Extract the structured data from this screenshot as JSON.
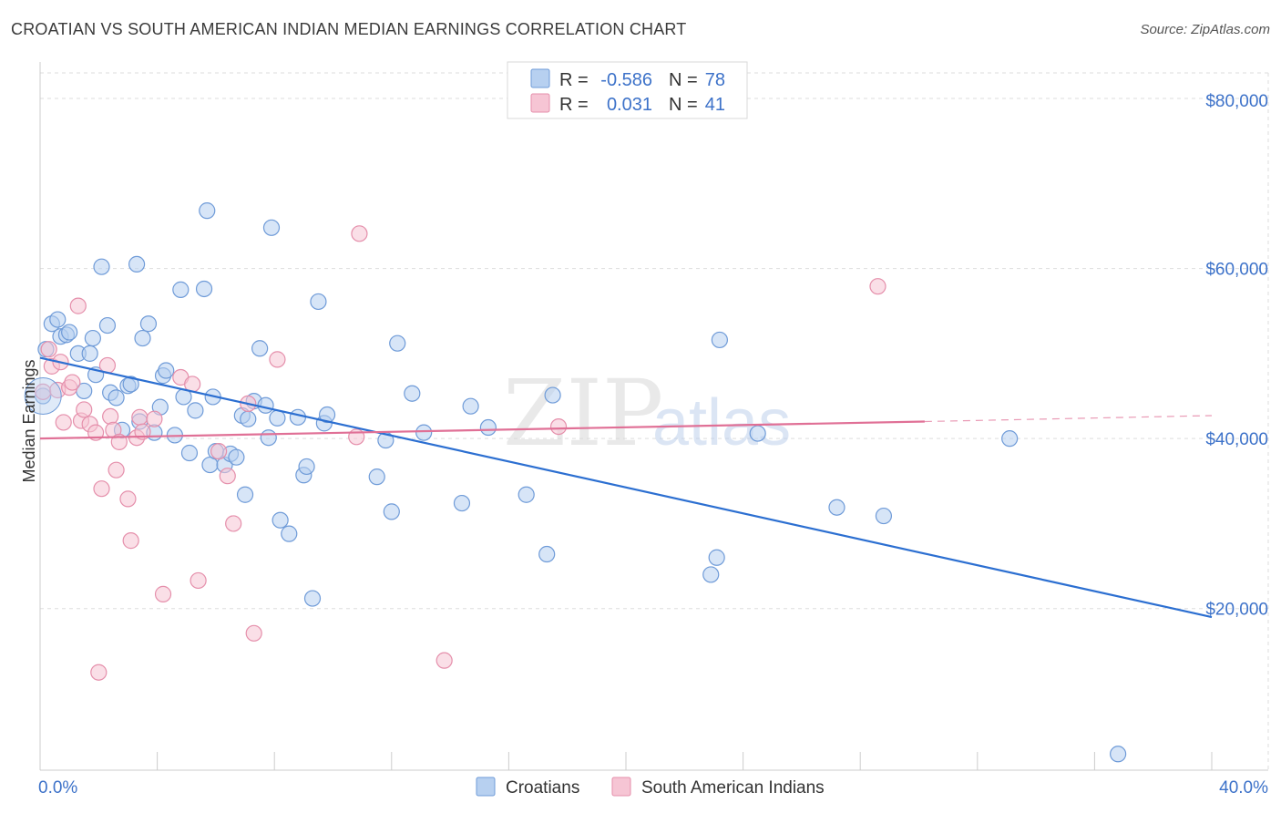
{
  "title": "CROATIAN VS SOUTH AMERICAN INDIAN MEDIAN EARNINGS CORRELATION CHART",
  "source": "Source: ZipAtlas.com",
  "watermark": {
    "zip": "ZIP",
    "atlas": "atlas"
  },
  "colors": {
    "blue_fill": "#b7d0f0",
    "blue_stroke": "#6f9bd8",
    "blue_line": "#2c6fd1",
    "pink_fill": "#f6c5d4",
    "pink_stroke": "#e58fab",
    "pink_line": "#e07096",
    "axis_text": "#3d72c9",
    "grid": "#dddddd"
  },
  "legend": {
    "rows": [
      {
        "r_label": "R =",
        "r_value": "-0.586",
        "n_label": "N =",
        "n_value": "78"
      },
      {
        "r_label": "R =",
        "r_value": "0.031",
        "n_label": "N =",
        "n_value": "41"
      }
    ]
  },
  "bottom_legend": [
    "Croatians",
    "South American Indians"
  ],
  "chart_data": {
    "type": "scatter",
    "ylabel": "Median Earnings",
    "x_tick_labels": [
      "0.0%",
      "40.0%"
    ],
    "y_tick_labels": [
      "$20,000",
      "$40,000",
      "$60,000",
      "$80,000"
    ],
    "xlim": [
      0,
      40
    ],
    "ylim": [
      1000,
      83000
    ],
    "y_ticks": [
      20000,
      40000,
      60000,
      80000
    ],
    "x_minor_ticks": [
      0,
      4,
      8,
      12,
      16,
      20,
      24,
      28,
      32,
      36,
      40
    ],
    "grid": true,
    "series": [
      {
        "name": "Croatians",
        "trend": {
          "x": [
            0,
            40
          ],
          "y": [
            49500,
            19000
          ]
        },
        "points": [
          [
            0.1,
            45000
          ],
          [
            0.2,
            50500
          ],
          [
            0.4,
            53500
          ],
          [
            0.6,
            54000
          ],
          [
            0.7,
            52000
          ],
          [
            0.9,
            52200
          ],
          [
            1.0,
            52500
          ],
          [
            1.3,
            50000
          ],
          [
            1.5,
            45600
          ],
          [
            1.7,
            50000
          ],
          [
            1.8,
            51800
          ],
          [
            1.9,
            47500
          ],
          [
            2.1,
            60200
          ],
          [
            2.3,
            53300
          ],
          [
            2.4,
            45400
          ],
          [
            2.6,
            44800
          ],
          [
            2.8,
            41000
          ],
          [
            3.0,
            46200
          ],
          [
            3.1,
            46400
          ],
          [
            3.3,
            60500
          ],
          [
            3.4,
            42000
          ],
          [
            3.5,
            51800
          ],
          [
            3.7,
            53500
          ],
          [
            3.9,
            40700
          ],
          [
            4.1,
            43700
          ],
          [
            4.2,
            47400
          ],
          [
            4.3,
            48000
          ],
          [
            4.6,
            40400
          ],
          [
            4.8,
            57500
          ],
          [
            4.9,
            44900
          ],
          [
            5.1,
            38300
          ],
          [
            5.3,
            43300
          ],
          [
            5.6,
            57600
          ],
          [
            5.7,
            66800
          ],
          [
            5.8,
            36900
          ],
          [
            5.9,
            44900
          ],
          [
            6.0,
            38500
          ],
          [
            6.3,
            36900
          ],
          [
            6.5,
            38200
          ],
          [
            6.7,
            37800
          ],
          [
            6.9,
            42700
          ],
          [
            7.0,
            33400
          ],
          [
            7.1,
            42300
          ],
          [
            7.3,
            44400
          ],
          [
            7.5,
            50600
          ],
          [
            7.7,
            43900
          ],
          [
            7.8,
            40100
          ],
          [
            7.9,
            64800
          ],
          [
            8.1,
            42400
          ],
          [
            8.2,
            30400
          ],
          [
            8.5,
            28800
          ],
          [
            8.8,
            42500
          ],
          [
            9.0,
            35700
          ],
          [
            9.1,
            36700
          ],
          [
            9.3,
            21200
          ],
          [
            9.5,
            56100
          ],
          [
            9.7,
            41800
          ],
          [
            9.8,
            42800
          ],
          [
            11.5,
            35500
          ],
          [
            11.8,
            39800
          ],
          [
            12.0,
            31400
          ],
          [
            12.2,
            51200
          ],
          [
            12.7,
            45300
          ],
          [
            13.1,
            40700
          ],
          [
            14.4,
            32400
          ],
          [
            14.7,
            43800
          ],
          [
            15.3,
            41300
          ],
          [
            16.6,
            33400
          ],
          [
            17.3,
            26400
          ],
          [
            17.5,
            45100
          ],
          [
            22.9,
            24000
          ],
          [
            23.1,
            26000
          ],
          [
            23.2,
            51600
          ],
          [
            24.5,
            40600
          ],
          [
            27.2,
            31900
          ],
          [
            28.8,
            30900
          ],
          [
            33.1,
            40000
          ],
          [
            36.8,
            2900
          ]
        ]
      },
      {
        "name": "South American Indians",
        "trend": {
          "x": [
            0,
            30.2
          ],
          "y": [
            40000,
            42000
          ],
          "dashed_to": [
            40,
            42700
          ]
        },
        "points": [
          [
            0.1,
            45500
          ],
          [
            0.3,
            50500
          ],
          [
            0.4,
            48500
          ],
          [
            0.6,
            45700
          ],
          [
            0.7,
            49000
          ],
          [
            0.8,
            41900
          ],
          [
            1.0,
            46000
          ],
          [
            1.1,
            46600
          ],
          [
            1.3,
            55600
          ],
          [
            1.4,
            42100
          ],
          [
            1.5,
            43400
          ],
          [
            1.7,
            41700
          ],
          [
            1.9,
            40700
          ],
          [
            2.0,
            12500
          ],
          [
            2.1,
            34100
          ],
          [
            2.3,
            48600
          ],
          [
            2.4,
            42600
          ],
          [
            2.5,
            41000
          ],
          [
            2.6,
            36300
          ],
          [
            2.7,
            39600
          ],
          [
            3.0,
            32900
          ],
          [
            3.1,
            28000
          ],
          [
            3.3,
            40100
          ],
          [
            3.4,
            42500
          ],
          [
            3.5,
            40800
          ],
          [
            3.9,
            42300
          ],
          [
            4.2,
            21700
          ],
          [
            4.8,
            47200
          ],
          [
            5.2,
            46400
          ],
          [
            5.4,
            23300
          ],
          [
            6.1,
            38500
          ],
          [
            6.4,
            35600
          ],
          [
            6.6,
            30000
          ],
          [
            7.1,
            44100
          ],
          [
            7.3,
            17100
          ],
          [
            8.1,
            49300
          ],
          [
            10.9,
            64100
          ],
          [
            10.8,
            40200
          ],
          [
            13.8,
            13900
          ],
          [
            17.7,
            41400
          ],
          [
            28.6,
            57900
          ]
        ]
      }
    ]
  }
}
